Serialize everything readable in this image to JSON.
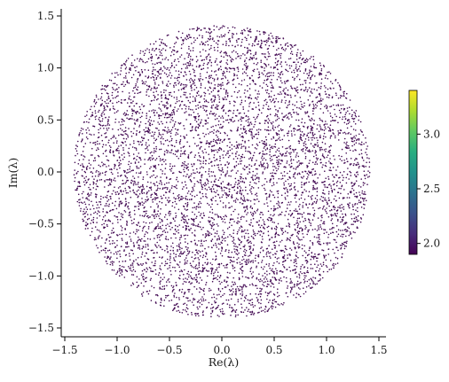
{
  "chart_data": {
    "type": "scatter",
    "title": "",
    "xlabel": "Re(λ)",
    "ylabel": "Im(λ)",
    "xlim": [
      -1.55,
      1.55
    ],
    "ylim": [
      -1.56,
      1.56
    ],
    "x_ticks": [
      -1.5,
      -1.0,
      -0.5,
      0.0,
      0.5,
      1.0,
      1.5
    ],
    "x_tick_labels": [
      "−1.5",
      "−1.0",
      "−0.5",
      "0.0",
      "0.5",
      "1.0",
      "1.5"
    ],
    "y_ticks": [
      -1.5,
      -1.0,
      -0.5,
      0.0,
      0.5,
      1.0,
      1.5
    ],
    "y_tick_labels": [
      "−1.5",
      "−1.0",
      "−0.5",
      "0.0",
      "0.5",
      "1.0",
      "1.5"
    ],
    "grid": false,
    "series": [
      {
        "distribution": "uniform-disk",
        "center": [
          0,
          0
        ],
        "radius": 1.414,
        "point_count": 16000,
        "color": "#440c54"
      }
    ],
    "colorbar": {
      "colormap": "viridis",
      "range": [
        1.9,
        3.4
      ],
      "ticks": [
        2.0,
        2.5,
        3.0
      ],
      "tick_labels": [
        "2.0",
        "2.5",
        "3.0"
      ]
    }
  }
}
